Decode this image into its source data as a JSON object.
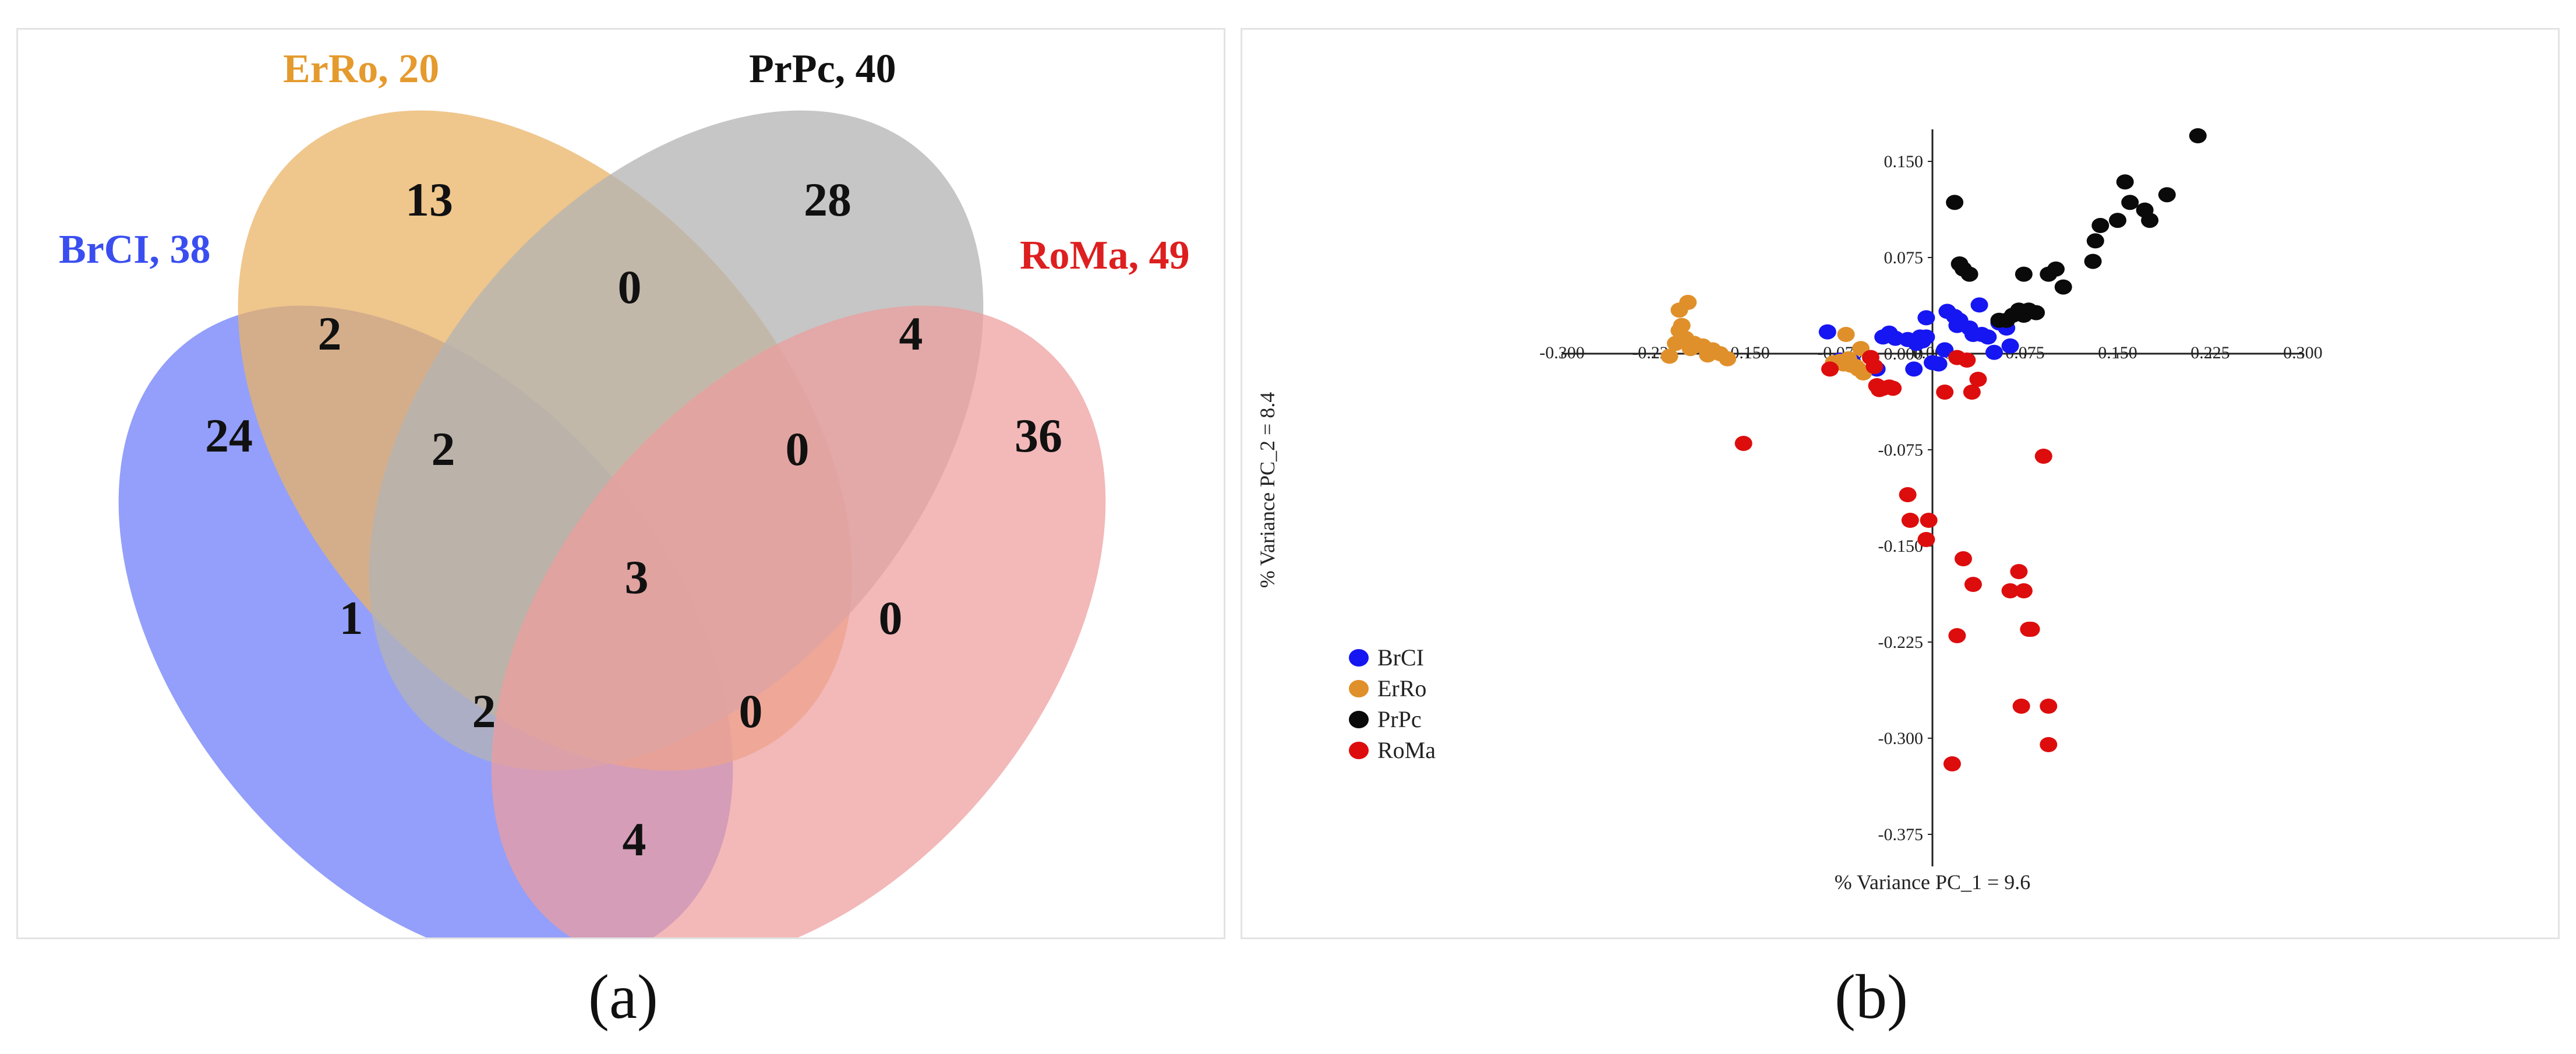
{
  "panel_labels": {
    "a": "(a)",
    "b": "(b)"
  },
  "chart_data": [
    {
      "type": "venn",
      "sets": [
        {
          "key": "BrCI",
          "label": "BrCI, 38",
          "total": 38,
          "color": "#3a4ef0",
          "fill": "#6f7ff8"
        },
        {
          "key": "ErRo",
          "label": "ErRo, 20",
          "total": 20,
          "color": "#e59a2e",
          "fill": "#eab366"
        },
        {
          "key": "PrPc",
          "label": "PrPc, 40",
          "total": 40,
          "color": "#111111",
          "fill": "#b3b3b3"
        },
        {
          "key": "RoMa",
          "label": "RoMa, 49",
          "total": 49,
          "color": "#dd1f1f",
          "fill": "#ef9d9d"
        }
      ],
      "regions": {
        "BrCI_only": "24",
        "ErRo_only": "13",
        "PrPc_only": "28",
        "RoMa_only": "36",
        "BrCI_ErRo": "2",
        "ErRo_PrPc": "0",
        "PrPc_RoMa": "4",
        "BrCI_ErRo_PrPc": "2",
        "ErRo_PrPc_RoMa": "0",
        "BrCI_PrPc": "1",
        "ErRo_RoMa": "0",
        "all_four": "3",
        "BrCI_PrPc_RoMa": "2",
        "BrCI_ErRo_RoMa": "0",
        "BrCI_RoMa": "4"
      }
    },
    {
      "type": "scatter",
      "xlabel": "% Variance  PC_1  = 9.6",
      "ylabel": "% Variance  PC_2  = 8.4",
      "xlim": [
        -0.3,
        0.3
      ],
      "ylim": [
        -0.4,
        0.175
      ],
      "xticks": [
        "-0.300",
        "-0.225",
        "-0.150",
        "-0.075",
        "0.000",
        "0.075",
        "0.150",
        "0.225",
        "0.300"
      ],
      "yticks": [
        "0.150",
        "0.075",
        "0.000",
        "-0.075",
        "-0.150",
        "-0.225",
        "-0.300",
        "-0.375"
      ],
      "legend_position": "bottom-left",
      "series": [
        {
          "name": "BrCI",
          "color": "#1616f2",
          "points": [
            [
              -0.085,
              0.017
            ],
            [
              -0.075,
              -0.005
            ],
            [
              -0.065,
              -0.006
            ],
            [
              -0.045,
              -0.012
            ],
            [
              -0.04,
              0.013
            ],
            [
              -0.035,
              0.016
            ],
            [
              -0.03,
              0.012
            ],
            [
              -0.02,
              0.011
            ],
            [
              -0.013,
              0.008
            ],
            [
              -0.01,
              0.013
            ],
            [
              -0.008,
              0.01
            ],
            [
              -0.015,
              -0.012
            ],
            [
              -0.005,
              0.013
            ],
            [
              0.0,
              -0.007
            ],
            [
              0.005,
              -0.008
            ],
            [
              0.01,
              0.003
            ],
            [
              0.018,
              0.029
            ],
            [
              0.02,
              0.022
            ],
            [
              0.022,
              0.026
            ],
            [
              0.03,
              0.02
            ],
            [
              0.033,
              0.015
            ],
            [
              0.04,
              0.015
            ],
            [
              0.045,
              0.013
            ],
            [
              0.05,
              0.001
            ],
            [
              0.054,
              0.024
            ],
            [
              0.06,
              0.02
            ],
            [
              0.063,
              0.006
            ],
            [
              -0.005,
              0.028
            ],
            [
              0.012,
              0.033
            ],
            [
              0.038,
              0.038
            ]
          ]
        },
        {
          "name": "ErRo",
          "color": "#e0902a",
          "points": [
            [
              -0.205,
              0.018
            ],
            [
              -0.208,
              0.008
            ],
            [
              -0.203,
              0.022
            ],
            [
              -0.2,
              0.012
            ],
            [
              -0.196,
              0.004
            ],
            [
              -0.193,
              0.008
            ],
            [
              -0.186,
              0.006
            ],
            [
              -0.182,
              -0.001
            ],
            [
              -0.178,
              0.003
            ],
            [
              -0.172,
              0.0
            ],
            [
              -0.166,
              -0.004
            ],
            [
              -0.213,
              -0.002
            ],
            [
              -0.205,
              0.034
            ],
            [
              -0.198,
              0.04
            ],
            [
              -0.08,
              -0.007
            ],
            [
              -0.075,
              -0.006
            ],
            [
              -0.072,
              -0.008
            ],
            [
              -0.068,
              -0.004
            ],
            [
              -0.066,
              -0.009
            ],
            [
              -0.062,
              -0.01
            ],
            [
              -0.056,
              -0.015
            ],
            [
              -0.06,
              -0.012
            ],
            [
              -0.058,
              0.004
            ],
            [
              -0.07,
              0.015
            ]
          ]
        },
        {
          "name": "PrPc",
          "color": "#0a0a0a",
          "points": [
            [
              0.018,
              0.118
            ],
            [
              0.022,
              0.07
            ],
            [
              0.025,
              0.066
            ],
            [
              0.03,
              0.062
            ],
            [
              0.054,
              0.026
            ],
            [
              0.06,
              0.026
            ],
            [
              0.065,
              0.03
            ],
            [
              0.07,
              0.034
            ],
            [
              0.074,
              0.03
            ],
            [
              0.078,
              0.034
            ],
            [
              0.084,
              0.032
            ],
            [
              0.074,
              0.062
            ],
            [
              0.094,
              0.062
            ],
            [
              0.1,
              0.066
            ],
            [
              0.106,
              0.052
            ],
            [
              0.13,
              0.072
            ],
            [
              0.132,
              0.088
            ],
            [
              0.136,
              0.1
            ],
            [
              0.15,
              0.104
            ],
            [
              0.156,
              0.134
            ],
            [
              0.16,
              0.118
            ],
            [
              0.172,
              0.112
            ],
            [
              0.176,
              0.104
            ],
            [
              0.19,
              0.124
            ],
            [
              0.215,
              0.17
            ]
          ]
        },
        {
          "name": "RoMa",
          "color": "#dd0d0d",
          "points": [
            [
              -0.153,
              -0.07
            ],
            [
              -0.083,
              -0.012
            ],
            [
              -0.05,
              -0.003
            ],
            [
              -0.047,
              -0.01
            ],
            [
              -0.045,
              -0.025
            ],
            [
              -0.043,
              -0.028
            ],
            [
              -0.04,
              -0.027
            ],
            [
              -0.035,
              -0.026
            ],
            [
              -0.032,
              -0.027
            ],
            [
              -0.02,
              -0.11
            ],
            [
              -0.018,
              -0.13
            ],
            [
              -0.003,
              -0.13
            ],
            [
              -0.005,
              -0.145
            ],
            [
              0.01,
              -0.03
            ],
            [
              0.02,
              -0.003
            ],
            [
              0.028,
              -0.005
            ],
            [
              0.032,
              -0.03
            ],
            [
              0.037,
              -0.02
            ],
            [
              0.09,
              -0.08
            ],
            [
              0.02,
              -0.22
            ],
            [
              0.025,
              -0.16
            ],
            [
              0.033,
              -0.18
            ],
            [
              0.063,
              -0.185
            ],
            [
              0.07,
              -0.17
            ],
            [
              0.074,
              -0.185
            ],
            [
              0.078,
              -0.215
            ],
            [
              0.08,
              -0.215
            ],
            [
              0.072,
              -0.275
            ],
            [
              0.094,
              -0.275
            ],
            [
              0.094,
              -0.305
            ],
            [
              0.016,
              -0.32
            ]
          ]
        }
      ]
    }
  ]
}
